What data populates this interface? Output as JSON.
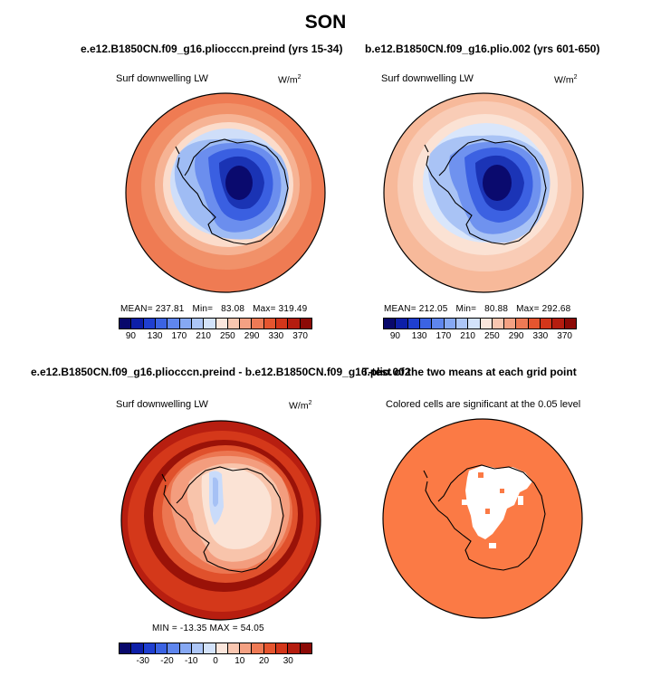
{
  "title": "SON",
  "panels": {
    "p1": {
      "title": "e.e12.B1850CN.f09_g16.pliocccn.preind (yrs 15-34)",
      "variable": "Surf downwelling LW",
      "units_base": "W/m",
      "units_exp": "2",
      "mean_label": "MEAN=",
      "mean": "237.81",
      "min_label": "Min=",
      "min": "83.08",
      "max_label": "Max=",
      "max": "319.49"
    },
    "p2": {
      "title": "b.e12.B1850CN.f09_g16.plio.002 (yrs 601-650)",
      "variable": "Surf downwelling LW",
      "units_base": "W/m",
      "units_exp": "2",
      "mean_label": "MEAN=",
      "mean": "212.05",
      "min_label": "Min=",
      "min": "80.88",
      "max_label": "Max=",
      "max": "292.68"
    },
    "p3": {
      "title": "e.e12.B1850CN.f09_g16.pliocccn.preind - b.e12.B1850CN.f09_g16.plio.002",
      "variable": "Surf downwelling LW",
      "units_base": "W/m",
      "units_exp": "2",
      "stats_text": "MIN = -13.35 MAX = 54.05"
    },
    "p4": {
      "title": "T-test of the two means at each grid point",
      "subtitle": "Colored cells are significant at the 0.05 level"
    }
  },
  "colorbars": {
    "abs": {
      "ticks": [
        "90",
        "130",
        "170",
        "210",
        "250",
        "290",
        "330",
        "370"
      ],
      "colors": [
        "#08086b",
        "#0d1fa8",
        "#1f3fd0",
        "#3b63e3",
        "#5f86ee",
        "#86a8f3",
        "#adc6f7",
        "#d3e2fa",
        "#fbe6dc",
        "#f9c6b0",
        "#f4a183",
        "#ee7a55",
        "#e5552f",
        "#d3361a",
        "#b51d0f",
        "#8c0a06"
      ]
    },
    "diff": {
      "ticks": [
        "-30",
        "-20",
        "-10",
        "0",
        "10",
        "20",
        "30"
      ],
      "colors": [
        "#08086b",
        "#0d1fa8",
        "#1f3fd0",
        "#3b63e3",
        "#5f86ee",
        "#86a8f3",
        "#adc6f7",
        "#d3e2fa",
        "#fbe6dc",
        "#f9c6b0",
        "#f4a183",
        "#ee7a55",
        "#e5552f",
        "#d3361a",
        "#b51d0f",
        "#8c0a06"
      ]
    }
  }
}
